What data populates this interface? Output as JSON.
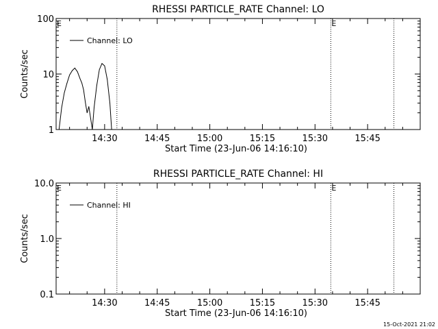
{
  "footer_timestamp": "15-Oct-2021 21:02",
  "chart_data": [
    {
      "type": "line",
      "title": "RHESSI PARTICLE_RATE Channel: LO",
      "xlabel": "Start Time (23-Jun-06 14:16:10)",
      "ylabel": "Counts/sec",
      "yscale": "log",
      "ylim": [
        1,
        100
      ],
      "xlim": [
        "14:16:10",
        "16:00:00"
      ],
      "x_ticks": [
        "14:30",
        "14:45",
        "15:00",
        "15:15",
        "15:30",
        "15:45"
      ],
      "y_ticks": [
        "1",
        "10",
        "100"
      ],
      "legend": {
        "position": "top-left",
        "entries": [
          "Channel: LO"
        ]
      },
      "markers": [
        {
          "time": "14:33:30",
          "label": ""
        },
        {
          "time": "15:34:30",
          "label": "E"
        },
        {
          "time": "15:52:30",
          "label": ""
        }
      ],
      "start_marker_label": "E",
      "series": [
        {
          "name": "Channel: LO",
          "points": [
            [
              "14:17:00",
              1.0
            ],
            [
              "14:17:45",
              2.5
            ],
            [
              "14:18:30",
              4.6
            ],
            [
              "14:19:15",
              6.8
            ],
            [
              "14:20:00",
              9.6
            ],
            [
              "14:20:45",
              11.5
            ],
            [
              "14:21:30",
              12.8
            ],
            [
              "14:22:15",
              11.0
            ],
            [
              "14:23:00",
              8.2
            ],
            [
              "14:23:30",
              6.9
            ],
            [
              "14:24:00",
              5.2
            ],
            [
              "14:24:30",
              3.1
            ],
            [
              "14:25:00",
              2.0
            ],
            [
              "14:25:30",
              2.6
            ],
            [
              "14:26:00",
              1.6
            ],
            [
              "14:26:30",
              1.0
            ],
            [
              "14:27:00",
              2.5
            ],
            [
              "14:27:45",
              6.2
            ],
            [
              "14:28:30",
              12.0
            ],
            [
              "14:29:15",
              15.5
            ],
            [
              "14:30:00",
              14.0
            ],
            [
              "14:30:45",
              8.0
            ],
            [
              "14:31:30",
              3.0
            ],
            [
              "14:32:00",
              1.0
            ]
          ]
        }
      ]
    },
    {
      "type": "line",
      "title": "RHESSI PARTICLE_RATE Channel: HI",
      "xlabel": "Start Time (23-Jun-06 14:16:10)",
      "ylabel": "Counts/sec",
      "yscale": "log",
      "ylim": [
        0.1,
        10
      ],
      "xlim": [
        "14:16:10",
        "16:00:00"
      ],
      "x_ticks": [
        "14:30",
        "14:45",
        "15:00",
        "15:15",
        "15:30",
        "15:45"
      ],
      "y_ticks": [
        "0.1",
        "1.0",
        "10.0"
      ],
      "legend": {
        "position": "top-left",
        "entries": [
          "Channel: HI"
        ]
      },
      "markers": [
        {
          "time": "14:33:30",
          "label": ""
        },
        {
          "time": "15:34:30",
          "label": "E"
        },
        {
          "time": "15:52:30",
          "label": ""
        }
      ],
      "start_marker_label": "E",
      "series": [
        {
          "name": "Channel: HI",
          "points": []
        }
      ]
    }
  ]
}
